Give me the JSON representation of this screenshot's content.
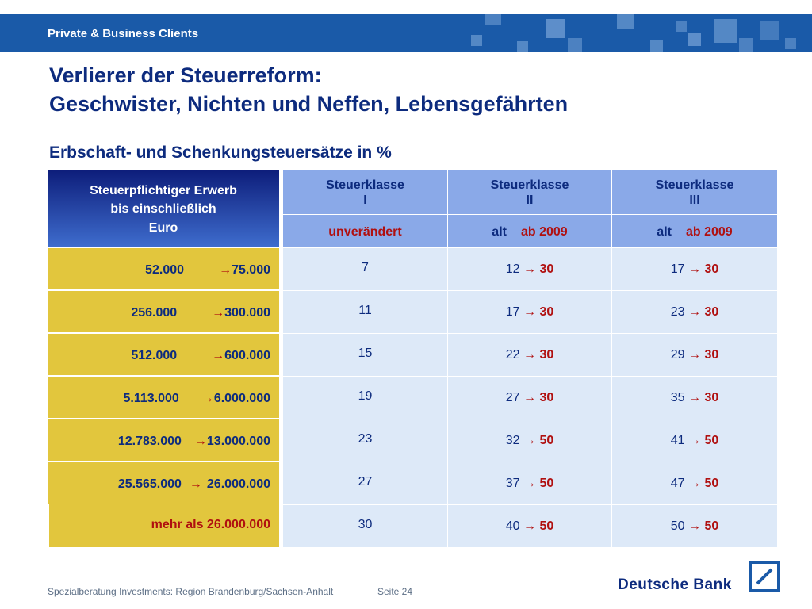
{
  "header": {
    "brand": "Private & Business Clients"
  },
  "title": {
    "line1": "Verlierer der Steuerreform:",
    "line2": "Geschwister, Nichten und Neffen, Lebensgefährten"
  },
  "subtitle": "Erbschaft- und Schenkungsteuersätze in %",
  "table": {
    "left_header": [
      "Steuerpflichtiger Erwerb",
      "bis einschließlich",
      "Euro"
    ],
    "class_headers": [
      {
        "line1": "Steuerklasse",
        "line2": "I"
      },
      {
        "line1": "Steuerklasse",
        "line2": "II"
      },
      {
        "line1": "Steuerklasse",
        "line2": "III"
      }
    ],
    "sub_headers": {
      "class1": "unverändert",
      "old": "alt",
      "new": "ab 2009"
    },
    "arrow": "→",
    "rows": [
      {
        "from": "52.000",
        "to": "75.000",
        "k1": "7",
        "k2_old": "12",
        "k2_new": "30",
        "k3_old": "17",
        "k3_new": "30"
      },
      {
        "from": "256.000",
        "to": "300.000",
        "k1": "11",
        "k2_old": "17",
        "k2_new": "30",
        "k3_old": "23",
        "k3_new": "30"
      },
      {
        "from": "512.000",
        "to": "600.000",
        "k1": "15",
        "k2_old": "22",
        "k2_new": "30",
        "k3_old": "29",
        "k3_new": "30"
      },
      {
        "from": "5.113.000",
        "to": "6.000.000",
        "k1": "19",
        "k2_old": "27",
        "k2_new": "30",
        "k3_old": "35",
        "k3_new": "30"
      },
      {
        "from": "12.783.000",
        "to": "13.000.000",
        "k1": "23",
        "k2_old": "32",
        "k2_new": "50",
        "k3_old": "41",
        "k3_new": "50"
      },
      {
        "from": "25.565.000",
        "to": "26.000.000",
        "k1": "27",
        "k2_old": "37",
        "k2_new": "50",
        "k3_old": "47",
        "k3_new": "50"
      },
      {
        "label": "mehr als 26.000.000",
        "k1": "30",
        "k2_old": "40",
        "k2_new": "50",
        "k3_old": "50",
        "k3_new": "50"
      }
    ]
  },
  "footer": {
    "text": "Spezialberatung Investments: Region Brandenburg/Sachsen-Anhalt",
    "page": "Seite 24",
    "brand": "Deutsche Bank"
  },
  "colors": {
    "header_blue": "#1a5aa8",
    "title_navy": "#0d2b7e",
    "gold": "#e2c63d",
    "accent_red": "#b01010",
    "light_blue": "#dde9f8",
    "column_header_blue": "#8aa9e8"
  }
}
